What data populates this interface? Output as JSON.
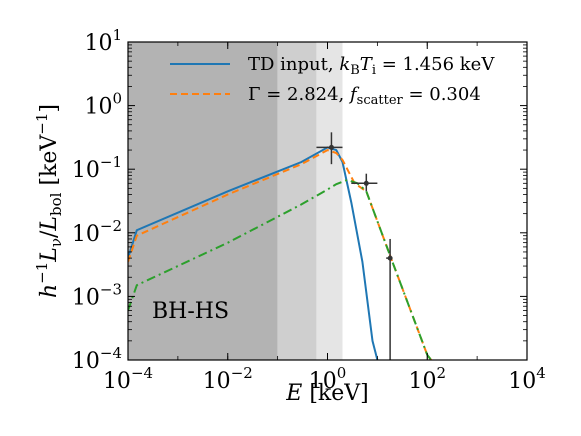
{
  "chart_data": {
    "type": "line",
    "xscale": "log",
    "yscale": "log",
    "xlim": [
      0.0001,
      10000
    ],
    "ylim": [
      0.0001,
      10
    ],
    "xticks": [
      {
        "value": 0.0001,
        "mant": "10",
        "exp": "−4"
      },
      {
        "value": 0.01,
        "mant": "10",
        "exp": "−2"
      },
      {
        "value": 1,
        "mant": "10",
        "exp": "0"
      },
      {
        "value": 100,
        "mant": "10",
        "exp": "2"
      },
      {
        "value": 10000,
        "mant": "10",
        "exp": "4"
      }
    ],
    "yticks": [
      {
        "value": 0.0001,
        "mant": "10",
        "exp": "−4"
      },
      {
        "value": 0.001,
        "mant": "10",
        "exp": "−3"
      },
      {
        "value": 0.01,
        "mant": "10",
        "exp": "−2"
      },
      {
        "value": 0.1,
        "mant": "10",
        "exp": "−1"
      },
      {
        "value": 1,
        "mant": "10",
        "exp": "0"
      },
      {
        "value": 10,
        "mant": "10",
        "exp": "1"
      }
    ],
    "xlabel": "E [keV]",
    "ylabel": "h⁻¹ L_ν / L_bol [keV⁻¹]",
    "shaded_bands": [
      {
        "x0": 0.0001,
        "x1": 0.1,
        "color": "#b3b3b3"
      },
      {
        "x0": 0.1,
        "x1": 0.6,
        "color": "#cfcfcf"
      },
      {
        "x0": 0.6,
        "x1": 2.0,
        "color": "#e5e5e5"
      }
    ],
    "region_label": "BH-HS",
    "series": [
      {
        "name": "TD input, k_B T_i = 1.456 keV",
        "color": "#1f77b4",
        "dash": "solid",
        "x": [
          0.0001,
          0.00015,
          0.01,
          0.3,
          1.0,
          1.5,
          2.0,
          3.0,
          5.0,
          8.0,
          10.0
        ],
        "y": [
          0.004,
          0.011,
          0.045,
          0.13,
          0.22,
          0.2,
          0.13,
          0.03,
          0.0035,
          0.0002,
          0.0001
        ]
      },
      {
        "name": "Γ = 2.824, f_scatter = 0.304",
        "color": "#ff7f0e",
        "dash": "dashed",
        "x": [
          0.0001,
          0.00015,
          0.01,
          0.3,
          1.0,
          1.5,
          2.0,
          3.5,
          6.0,
          20.0,
          100.0,
          120.0
        ],
        "y": [
          0.0035,
          0.009,
          0.04,
          0.12,
          0.2,
          0.18,
          0.14,
          0.06,
          0.045,
          0.0035,
          0.00012,
          0.0001
        ]
      },
      {
        "name": "",
        "color": "#2ca02c",
        "dash": "dashdot",
        "x": [
          0.0001,
          0.00015,
          0.01,
          0.3,
          1.0,
          1.5,
          2.5,
          4.0,
          6.0,
          20.0,
          100.0,
          120.0
        ],
        "y": [
          0.0006,
          0.0015,
          0.007,
          0.028,
          0.048,
          0.058,
          0.068,
          0.06,
          0.045,
          0.0035,
          0.00012,
          0.0001
        ]
      }
    ],
    "data_points": [
      {
        "x": 1.2,
        "y": 0.22,
        "xlo": 0.6,
        "xhi": 2.0,
        "ylo": 0.12,
        "yhi": 0.38
      },
      {
        "x": 6.0,
        "y": 0.06,
        "xlo": 3.0,
        "xhi": 10.0,
        "ylo": 0.045,
        "yhi": 0.085
      },
      {
        "x": 18.0,
        "y": 0.004,
        "xlo": 15.0,
        "xhi": 20.0,
        "ylo": 0.0001,
        "yhi": 0.008
      }
    ],
    "legend": {
      "location": "upper right",
      "entries": [
        {
          "label": "TD input, ",
          "math": "k",
          "sub": "B",
          "math2": "T",
          "sub2": "i",
          "tail": " = 1.456 keV",
          "color": "#1f77b4",
          "dash": "solid"
        },
        {
          "label": "Γ = 2.824, ",
          "math": "f",
          "sub": "scatter",
          "math2": "",
          "sub2": "",
          "tail": " = 0.304",
          "color": "#ff7f0e",
          "dash": "dashed"
        }
      ]
    },
    "grid": false
  }
}
